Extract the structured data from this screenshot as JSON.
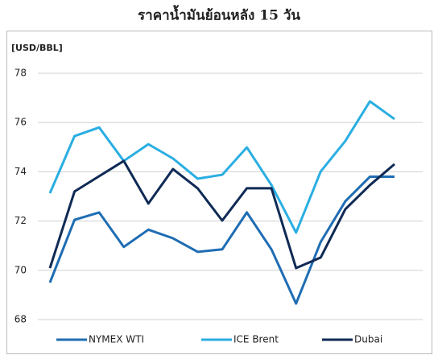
{
  "chart_data": {
    "type": "line",
    "title": "ราคาน้ำมันย้อนหลัง 15 วัน",
    "y_label": "[USD/BBL]",
    "ylim": [
      68,
      78
    ],
    "yticks": [
      68,
      70,
      72,
      74,
      76,
      78
    ],
    "grid": true,
    "legend": "bottom",
    "series": [
      {
        "name": "NYMEX WTI",
        "color": "#1f6db3",
        "values": [
          69.5,
          72.05,
          72.35,
          70.95,
          71.65,
          71.3,
          70.75,
          70.85,
          72.35,
          70.85,
          68.65,
          71.15,
          72.8,
          73.8,
          73.8
        ]
      },
      {
        "name": "ICE Brent",
        "color": "#2aaee2",
        "values": [
          73.13,
          75.45,
          75.8,
          74.44,
          75.12,
          74.54,
          73.72,
          73.88,
          74.99,
          73.46,
          71.53,
          74.01,
          75.25,
          76.86,
          76.14
        ]
      },
      {
        "name": "Dubai",
        "color": "#0f2a55",
        "values": [
          70.09,
          73.2,
          73.82,
          74.44,
          72.71,
          74.11,
          73.33,
          72.02,
          73.33,
          73.33,
          70.09,
          70.52,
          72.48,
          73.46,
          74.31
        ]
      }
    ]
  }
}
